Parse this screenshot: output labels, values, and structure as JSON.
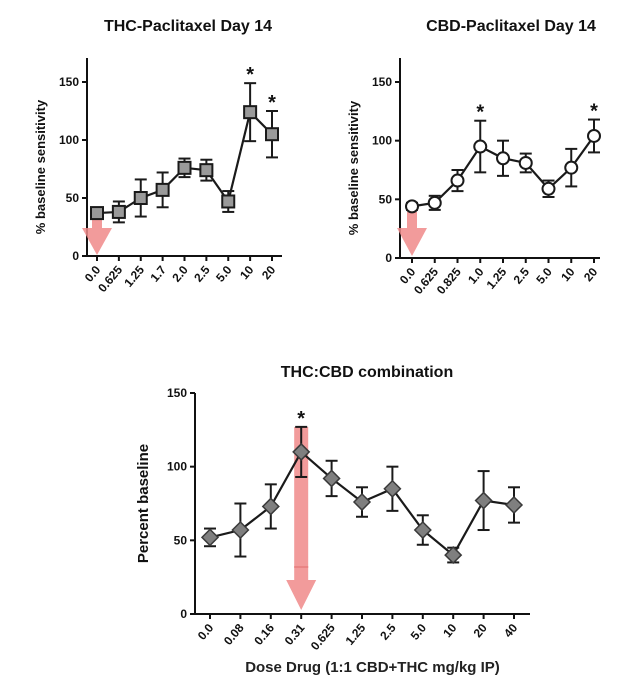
{
  "chart_data": [
    {
      "type": "line",
      "title": "THC-Paclitaxel Day 14",
      "ylabel": "% baseline sensitivity",
      "xlabel": "",
      "ylim": [
        0,
        170
      ],
      "yticks": [
        0,
        50,
        100,
        150
      ],
      "categories": [
        "0.0",
        "0.625",
        "1.25",
        "1.7",
        "2.0",
        "2.5",
        "5.0",
        "10",
        "20"
      ],
      "series": [
        {
          "values": [
            37,
            38,
            50,
            57,
            76,
            74,
            47,
            124,
            105
          ],
          "errors": [
            3,
            9,
            16,
            15,
            8,
            9,
            9,
            25,
            20
          ]
        }
      ],
      "significant": [
        "10",
        "20"
      ],
      "marker": "square",
      "arrow_at": "0.0"
    },
    {
      "type": "line",
      "title": "CBD-Paclitaxel Day 14",
      "ylabel": "% baseline sensitivity",
      "xlabel": "",
      "ylim": [
        0,
        170
      ],
      "yticks": [
        0,
        50,
        100,
        150
      ],
      "categories": [
        "0.0",
        "0.625",
        "0.825",
        "1.0",
        "1.25",
        "2.5",
        "5.0",
        "10",
        "20"
      ],
      "series": [
        {
          "values": [
            44,
            47,
            66,
            95,
            85,
            81,
            59,
            77,
            104
          ],
          "errors": [
            3,
            6,
            9,
            22,
            15,
            8,
            7,
            16,
            14
          ]
        }
      ],
      "significant": [
        "1.0",
        "20"
      ],
      "marker": "circle",
      "arrow_at": "0.0"
    },
    {
      "type": "line",
      "title": "THC:CBD combination",
      "ylabel": "Percent baseline",
      "xlabel": "Dose Drug (1:1 CBD+THC mg/kg IP)",
      "ylim": [
        0,
        150
      ],
      "yticks": [
        0,
        50,
        100,
        150
      ],
      "categories": [
        "0.0",
        "0.08",
        "0.16",
        "0.31",
        "0.625",
        "1.25",
        "2.5",
        "5.0",
        "10",
        "20",
        "40"
      ],
      "series": [
        {
          "values": [
            52,
            57,
            73,
            110,
            92,
            76,
            85,
            57,
            40,
            77,
            74
          ],
          "errors": [
            6,
            18,
            15,
            17,
            12,
            10,
            15,
            10,
            5,
            20,
            12
          ]
        }
      ],
      "significant": [
        "0.31"
      ],
      "marker": "diamond",
      "arrow_at": "0.31"
    }
  ],
  "colors": {
    "axis": "#111111",
    "line": "#1a1a1a",
    "marker_square_fill": "#9a9a9a",
    "marker_circle_fill": "#ffffff",
    "marker_diamond_fill": "#7f7f7f",
    "arrow": "#f08a8a",
    "arrow_line": "#e66f6f"
  },
  "star_symbol": "*"
}
